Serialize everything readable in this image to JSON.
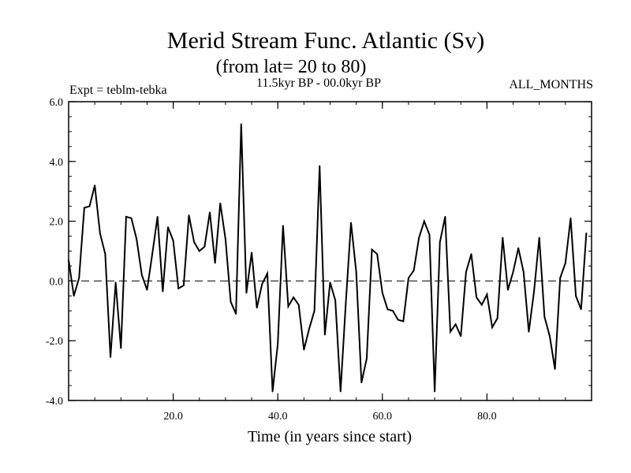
{
  "chart_data": {
    "type": "line",
    "title": "Merid Stream Func. Atlantic (Sv)",
    "subtitle": "(from lat= 20 to 80)",
    "header_left": "Expt = teblm-tebka",
    "header_center": "11.5kyr BP - 00.0kyr BP",
    "header_right": "ALL_MONTHS",
    "xlabel": "Time (in years since start)",
    "ylabel": "",
    "xlim": [
      0,
      100
    ],
    "ylim": [
      -4.0,
      6.0
    ],
    "x_ticks": [
      {
        "value": 20,
        "label": "20.0"
      },
      {
        "value": 40,
        "label": "40.0"
      },
      {
        "value": 60,
        "label": "60.0"
      },
      {
        "value": 80,
        "label": "80.0"
      }
    ],
    "y_ticks": [
      {
        "value": 6,
        "label": "6.0"
      },
      {
        "value": 4,
        "label": "4.0"
      },
      {
        "value": 2,
        "label": "2.0"
      },
      {
        "value": 0,
        "label": "0.0"
      },
      {
        "value": -2,
        "label": "-2.0"
      },
      {
        "value": -4,
        "label": "-4.0"
      }
    ],
    "reference_line": {
      "y": 0,
      "style": "dashed"
    },
    "grid": false,
    "line_color": "#000000",
    "series": [
      {
        "x": [
          0,
          1,
          2,
          3,
          4,
          5,
          6,
          7,
          8,
          9,
          10,
          11,
          12,
          13,
          14,
          15,
          16,
          17,
          18,
          19,
          20,
          21,
          22,
          23,
          24,
          25,
          26,
          27,
          28,
          29,
          30,
          31,
          32,
          33,
          34,
          35,
          36,
          37,
          38,
          39,
          40,
          41,
          42,
          43,
          44,
          45,
          46,
          47,
          48,
          49,
          50,
          51,
          52,
          53,
          54,
          55,
          56,
          57,
          58,
          59,
          60,
          61,
          62,
          63,
          64,
          65,
          66,
          67,
          68,
          69,
          70,
          71,
          72,
          73,
          74,
          75,
          76,
          77,
          78,
          79,
          80,
          81,
          82,
          83,
          84,
          85,
          86,
          87,
          88,
          89,
          90,
          91,
          92,
          93,
          94,
          95,
          96,
          97,
          98,
          99
        ],
        "values": [
          0.7,
          -0.5,
          0.1,
          2.45,
          2.5,
          3.2,
          1.6,
          0.9,
          -2.55,
          -0.05,
          -2.25,
          2.15,
          2.1,
          1.4,
          0.2,
          -0.3,
          0.9,
          2.15,
          -0.35,
          1.8,
          1.35,
          -0.25,
          -0.15,
          2.2,
          1.3,
          1.0,
          1.15,
          2.3,
          0.6,
          2.6,
          1.4,
          -0.7,
          -1.1,
          5.25,
          -0.4,
          0.95,
          -0.9,
          -0.1,
          0.25,
          -3.7,
          -2.1,
          1.85,
          -0.85,
          -0.55,
          -0.8,
          -2.3,
          -1.6,
          -1.0,
          3.85,
          -1.8,
          -0.05,
          -0.65,
          -3.7,
          -0.75,
          1.95,
          0.3,
          -3.4,
          -2.6,
          1.05,
          0.9,
          -0.4,
          -0.95,
          -1.0,
          -1.3,
          -1.35,
          0.1,
          0.35,
          1.45,
          2.0,
          1.55,
          -3.7,
          1.3,
          2.15,
          -1.7,
          -1.45,
          -1.85,
          0.3,
          0.9,
          -0.55,
          -0.8,
          -0.45,
          -1.55,
          -1.25,
          1.45,
          -0.3,
          0.3,
          1.1,
          0.3,
          -1.7,
          -0.35,
          1.45,
          -1.2,
          -1.85,
          -2.95,
          0.1,
          0.6,
          2.1,
          -0.5,
          -0.95,
          1.6
        ]
      }
    ]
  }
}
